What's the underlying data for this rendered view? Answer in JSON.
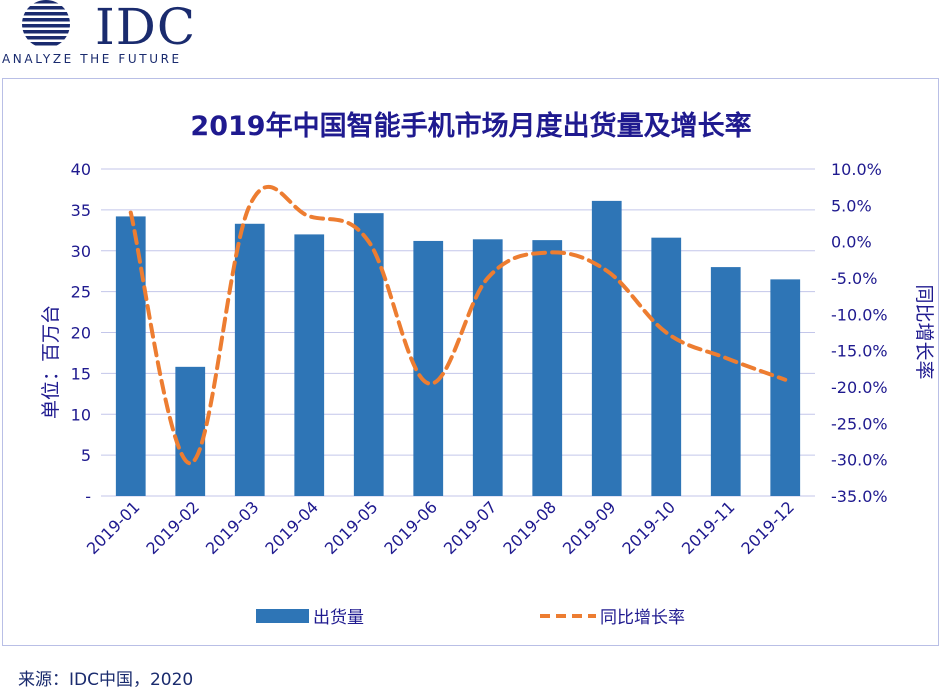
{
  "logo": {
    "name": "IDC",
    "tagline": "ANALYZE THE FUTURE"
  },
  "chart_data": {
    "type": "bar",
    "title": "2019年中国智能手机市场月度出货量及增长率",
    "categories": [
      "2019-01",
      "2019-02",
      "2019-03",
      "2019-04",
      "2019-05",
      "2019-06",
      "2019-07",
      "2019-08",
      "2019-09",
      "2019-10",
      "2019-11",
      "2019-12"
    ],
    "series": [
      {
        "name": "出货量",
        "type": "bar",
        "color": "#2e75b6",
        "values": [
          34.2,
          15.8,
          33.3,
          32.0,
          34.6,
          31.2,
          31.4,
          31.3,
          36.1,
          31.6,
          28.0,
          26.5
        ]
      },
      {
        "name": "同比增长率",
        "type": "line",
        "style": "dashed",
        "color": "#ed7d31",
        "axis": "right",
        "values": [
          4.0,
          -30.5,
          5.0,
          3.5,
          0.0,
          -19.5,
          -5.0,
          -1.5,
          -4.0,
          -12.5,
          -16.0,
          -19.0
        ]
      }
    ],
    "ylabel": "单位：百万台",
    "y2label": "同比增长率",
    "ylim": [
      0,
      40
    ],
    "y2lim": [
      -35,
      10
    ],
    "yticks": [
      "-",
      "5",
      "10",
      "15",
      "20",
      "25",
      "30",
      "35",
      "40"
    ],
    "y2ticks": [
      "-35.0%",
      "-30.0%",
      "-25.0%",
      "-20.0%",
      "-15.0%",
      "-10.0%",
      "-5.0%",
      "0.0%",
      "5.0%",
      "10.0%"
    ],
    "grid": true,
    "legend": "bottom"
  },
  "source": "来源：IDC中国，2020"
}
